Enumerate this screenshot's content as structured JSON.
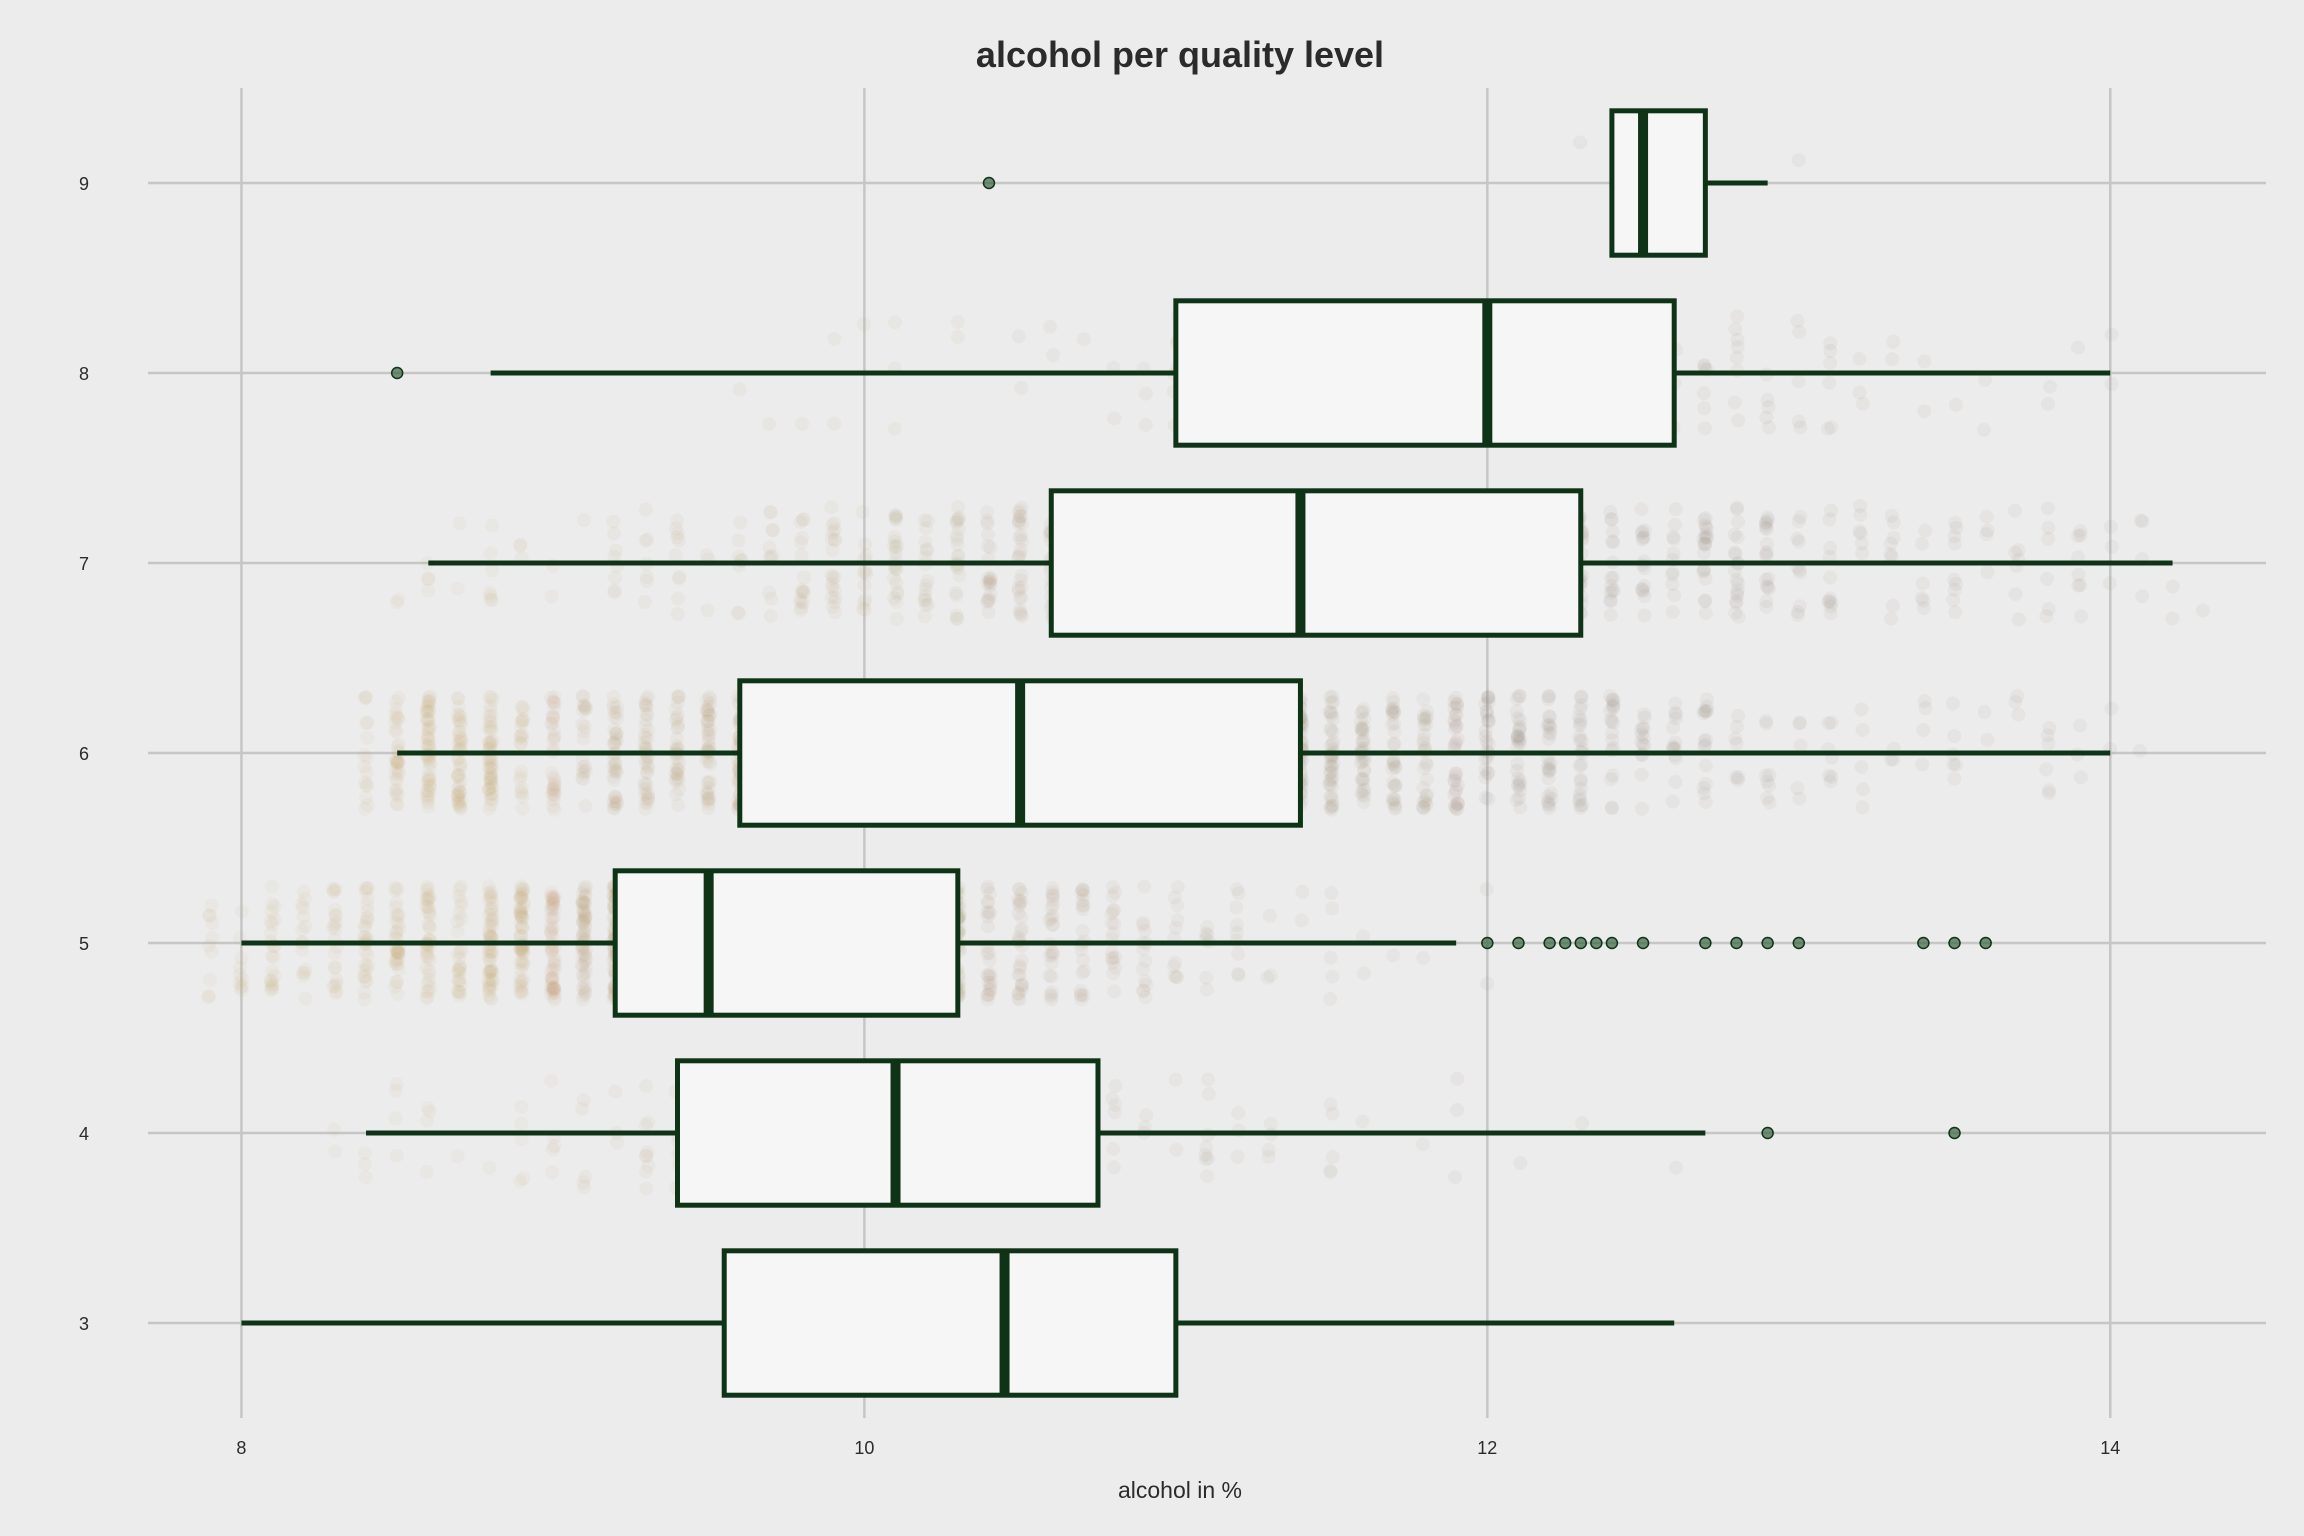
{
  "chart_data": {
    "type": "boxplot",
    "title": "alcohol per quality level",
    "xlabel": "alcohol in %",
    "ylabel": "",
    "xlim": [
      7.7,
      14.5
    ],
    "xticks": [
      "8",
      "10",
      "12",
      "14"
    ],
    "xtick_values": [
      8,
      10,
      12,
      14
    ],
    "categories": [
      "3",
      "4",
      "5",
      "6",
      "7",
      "8",
      "9"
    ],
    "grid": true,
    "orientation": "horizontal",
    "boxes": [
      {
        "quality": "3",
        "whisker_low": 8.0,
        "q1": 9.55,
        "median": 10.45,
        "q3": 11.0,
        "whisker_high": 12.6,
        "outliers": []
      },
      {
        "quality": "4",
        "whisker_low": 8.4,
        "q1": 9.4,
        "median": 10.1,
        "q3": 10.75,
        "whisker_high": 12.7,
        "outliers": [
          12.9,
          13.5
        ]
      },
      {
        "quality": "5",
        "whisker_low": 8.0,
        "q1": 9.2,
        "median": 9.5,
        "q3": 10.3,
        "whisker_high": 11.9,
        "outliers": [
          12.0,
          12.1,
          12.2,
          12.25,
          12.3,
          12.35,
          12.4,
          12.5,
          12.7,
          12.8,
          12.9,
          13.0,
          13.4,
          13.5,
          13.6
        ]
      },
      {
        "quality": "6",
        "whisker_low": 8.5,
        "q1": 9.6,
        "median": 10.5,
        "q3": 11.4,
        "whisker_high": 14.0,
        "outliers": []
      },
      {
        "quality": "7",
        "whisker_low": 8.6,
        "q1": 10.6,
        "median": 11.4,
        "q3": 12.3,
        "whisker_high": 14.2,
        "outliers": []
      },
      {
        "quality": "8",
        "whisker_low": 8.8,
        "q1": 11.0,
        "median": 12.0,
        "q3": 12.6,
        "whisker_high": 14.0,
        "outliers": [
          8.5
        ]
      },
      {
        "quality": "9",
        "whisker_low": 12.4,
        "q1": 12.4,
        "median": 12.5,
        "q3": 12.7,
        "whisker_high": 12.9,
        "outliers": [
          10.4
        ]
      }
    ],
    "jitter_density": [
      5,
      160,
      1450,
      1900,
      880,
      175,
      5
    ],
    "colors": {
      "background": "#ececec",
      "box_fill": "#f6f6f6",
      "box_stroke": "#0f3316",
      "outlier": "#2e5a35",
      "jitter_low": "#c8a772",
      "jitter_high": "#8c8078"
    }
  }
}
